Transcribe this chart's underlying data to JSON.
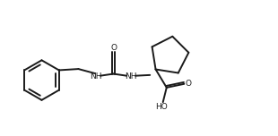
{
  "bg_color": "#ffffff",
  "line_color": "#1a1a1a",
  "lw": 1.4,
  "figsize": [
    3.1,
    1.52
  ],
  "dpi": 100,
  "xlim": [
    0,
    10.5
  ],
  "ylim": [
    -0.5,
    5.0
  ]
}
